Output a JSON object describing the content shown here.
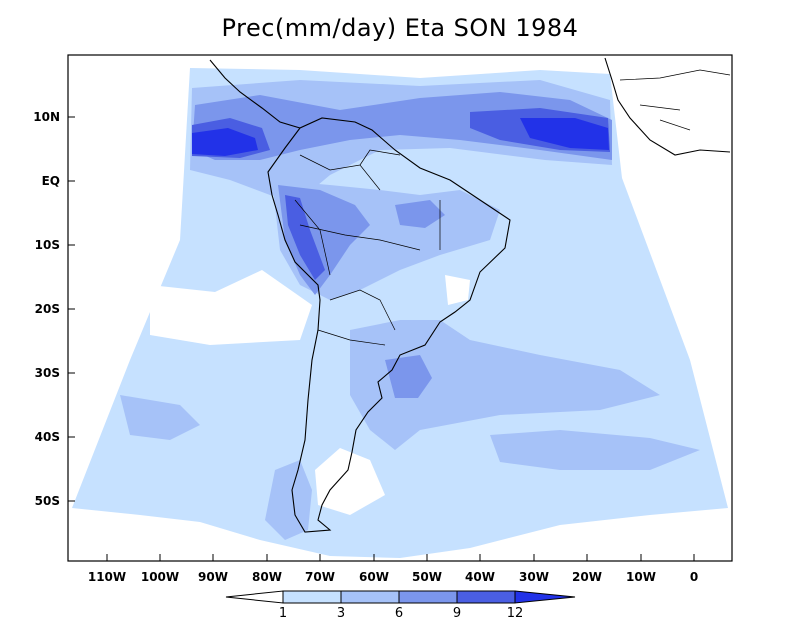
{
  "title": "Prec(mm/day) Eta SON 1984",
  "lat_ticks": [
    "10N",
    "EQ",
    "10S",
    "20S",
    "30S",
    "40S",
    "50S"
  ],
  "lon_ticks": [
    "110W",
    "100W",
    "90W",
    "80W",
    "70W",
    "60W",
    "50W",
    "40W",
    "30W",
    "20W",
    "10W",
    "0"
  ],
  "colorbar": {
    "labels": [
      "1",
      "3",
      "6",
      "9",
      "12"
    ],
    "colors": [
      "#ffffff",
      "#c6e1ff",
      "#a6c2f8",
      "#7b96ec",
      "#4a5ee2",
      "#2232e8"
    ]
  },
  "colors": {
    "level_1_3": "#c6e1ff",
    "level_3_6": "#a6c2f8",
    "level_6_9": "#7b96ec",
    "level_9_12": "#4a5ee2",
    "level_12_plus": "#2232e8",
    "coastline": "#000000"
  }
}
